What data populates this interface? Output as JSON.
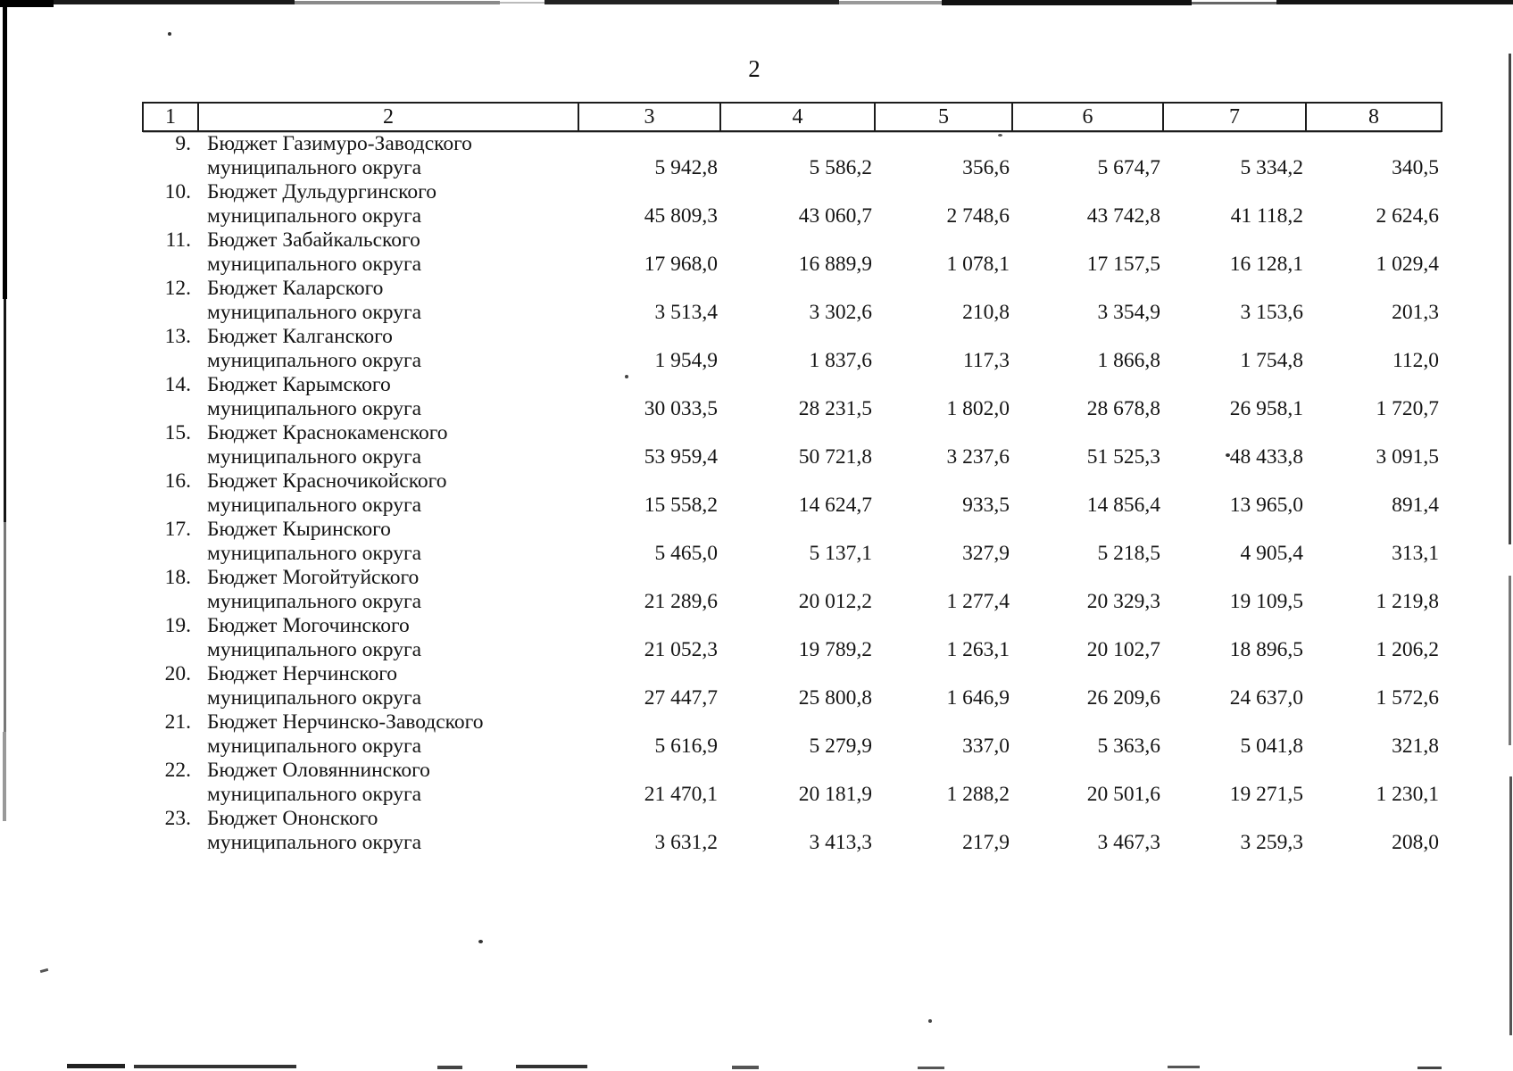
{
  "page": {
    "number": "2"
  },
  "table": {
    "header": [
      "1",
      "2",
      "3",
      "4",
      "5",
      "6",
      "7",
      "8"
    ],
    "name_line2": "муниципального округа",
    "rows": [
      {
        "no": "9.",
        "name_line1": "Бюджет Газимуро-Заводского",
        "name_line2": "муниципального округа",
        "values": [
          "5 942,8",
          "5 586,2",
          "356,6",
          "5 674,7",
          "5 334,2",
          "340,5"
        ]
      },
      {
        "no": "10.",
        "name_line1": "Бюджет Дульдургинского",
        "name_line2": "муниципального округа",
        "values": [
          "45 809,3",
          "43 060,7",
          "2 748,6",
          "43 742,8",
          "41 118,2",
          "2 624,6"
        ]
      },
      {
        "no": "11.",
        "name_line1": "Бюджет Забайкальского",
        "name_line2": "муниципального округа",
        "values": [
          "17 968,0",
          "16 889,9",
          "1 078,1",
          "17 157,5",
          "16 128,1",
          "1 029,4"
        ]
      },
      {
        "no": "12.",
        "name_line1": "Бюджет Каларского",
        "name_line2": "муниципального округа",
        "values": [
          "3 513,4",
          "3 302,6",
          "210,8",
          "3 354,9",
          "3 153,6",
          "201,3"
        ]
      },
      {
        "no": "13.",
        "name_line1": "Бюджет Калганского",
        "name_line2": "муниципального округа",
        "values": [
          "1 954,9",
          "1 837,6",
          "117,3",
          "1 866,8",
          "1 754,8",
          "112,0"
        ]
      },
      {
        "no": "14.",
        "name_line1": "Бюджет Карымского",
        "name_line2": "муниципального округа",
        "values": [
          "30 033,5",
          "28 231,5",
          "1 802,0",
          "28 678,8",
          "26 958,1",
          "1 720,7"
        ]
      },
      {
        "no": "15.",
        "name_line1": "Бюджет Краснокаменского",
        "name_line2": "муниципального округа",
        "values": [
          "53 959,4",
          "50 721,8",
          "3 237,6",
          "51 525,3",
          "48 433,8",
          "3 091,5"
        ]
      },
      {
        "no": "16.",
        "name_line1": "Бюджет Красночикойского",
        "name_line2": "муниципального округа",
        "values": [
          "15 558,2",
          "14 624,7",
          "933,5",
          "14 856,4",
          "13 965,0",
          "891,4"
        ]
      },
      {
        "no": "17.",
        "name_line1": "Бюджет Кыринского",
        "name_line2": "муниципального округа",
        "values": [
          "5 465,0",
          "5 137,1",
          "327,9",
          "5 218,5",
          "4 905,4",
          "313,1"
        ]
      },
      {
        "no": "18.",
        "name_line1": "Бюджет Могойтуйского",
        "name_line2": "муниципального округа",
        "values": [
          "21 289,6",
          "20 012,2",
          "1 277,4",
          "20 329,3",
          "19 109,5",
          "1 219,8"
        ]
      },
      {
        "no": "19.",
        "name_line1": "Бюджет Могочинского",
        "name_line2": "муниципального округа",
        "values": [
          "21 052,3",
          "19 789,2",
          "1 263,1",
          "20 102,7",
          "18 896,5",
          "1 206,2"
        ]
      },
      {
        "no": "20.",
        "name_line1": "Бюджет Нерчинского",
        "name_line2": "муниципального округа",
        "values": [
          "27 447,7",
          "25 800,8",
          "1 646,9",
          "26 209,6",
          "24 637,0",
          "1 572,6"
        ]
      },
      {
        "no": "21.",
        "name_line1": "Бюджет Нерчинско-Заводского",
        "name_line2": "муниципального округа",
        "values": [
          "5 616,9",
          "5 279,9",
          "337,0",
          "5 363,6",
          "5 041,8",
          "321,8"
        ]
      },
      {
        "no": "22.",
        "name_line1": "Бюджет Оловяннинского",
        "name_line2": "муниципального округа",
        "values": [
          "21 470,1",
          "20 181,9",
          "1 288,2",
          "20 501,6",
          "19 271,5",
          "1 230,1"
        ]
      },
      {
        "no": "23.",
        "name_line1": "Бюджет Ононского",
        "name_line2": "муниципального округа",
        "values": [
          "3 631,2",
          "3 413,3",
          "217,9",
          "3 467,3",
          "3 259,3",
          "208,0"
        ]
      }
    ]
  }
}
